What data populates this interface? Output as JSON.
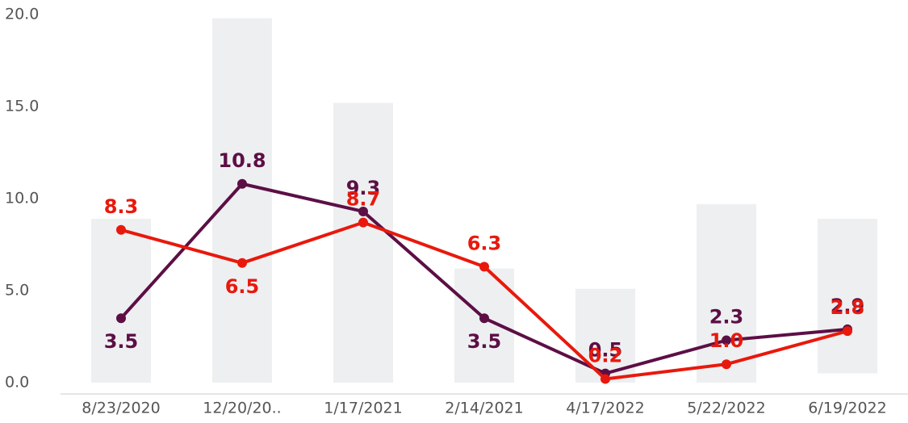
{
  "chart_data": {
    "type": "line",
    "categories": [
      "8/23/2020",
      "12/20/20..",
      "1/17/2021",
      "2/14/2021",
      "4/17/2022",
      "5/22/2022",
      "6/19/2022"
    ],
    "ranges": {
      "color": "#eeeff1",
      "low": [
        0,
        0,
        0,
        0,
        0,
        0,
        0.5
      ],
      "high": [
        8.9,
        19.8,
        15.2,
        6.2,
        5.1,
        9.7,
        8.9
      ]
    },
    "series": [
      {
        "color": "#5c0f45",
        "values": [
          3.5,
          10.8,
          9.3,
          3.5,
          0.5,
          2.3,
          2.9
        ],
        "value_labels": [
          "3.5",
          "10.8",
          "9.3",
          "3.5",
          "0.5",
          "2.3",
          "2.9"
        ]
      },
      {
        "color": "#e8190c",
        "values": [
          8.3,
          6.5,
          8.7,
          6.3,
          0.2,
          1.0,
          2.8
        ],
        "value_labels": [
          "8.3",
          "6.5",
          "8.7",
          "6.3",
          "0.2",
          "1.0",
          "2.8"
        ]
      }
    ],
    "ylim": [
      0,
      20
    ],
    "yticks": [
      {
        "value": 0,
        "label": "0.0"
      },
      {
        "value": 5,
        "label": "5.0"
      },
      {
        "value": 10,
        "label": "10.0"
      },
      {
        "value": 15,
        "label": "15.0"
      },
      {
        "value": 20,
        "label": "20.0"
      }
    ]
  }
}
